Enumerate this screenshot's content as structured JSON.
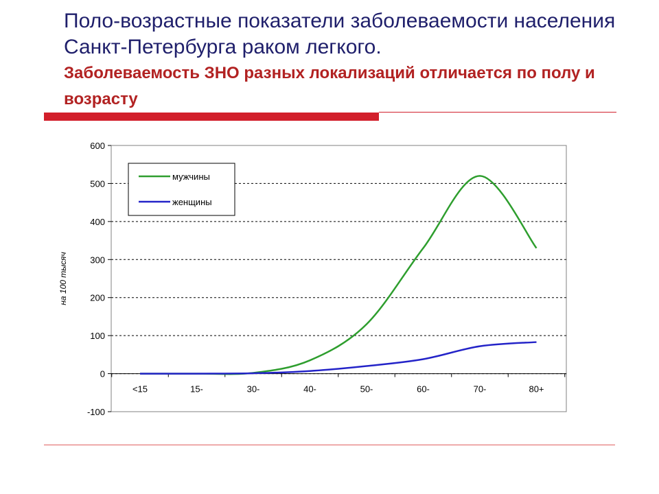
{
  "slide": {
    "title": "Поло-возрастные показатели заболеваемости населения Санкт-Петербурга раком легкого.",
    "subtitle": "Заболеваемость ЗНО разных локализаций отличается по полу и возрасту"
  },
  "chart_data": {
    "type": "line",
    "categories": [
      "<15",
      "15-",
      "30-",
      "40-",
      "50-",
      "60-",
      "70-",
      "80+"
    ],
    "ylabel": "на 100 тысяч",
    "ylim": [
      -100,
      600
    ],
    "yticks": [
      -100,
      0,
      100,
      200,
      300,
      400,
      500,
      600
    ],
    "grid": "dashed horizontal",
    "legend_position": "top-left",
    "series": [
      {
        "name": "мужчины",
        "color": "#2e9e2e",
        "values": [
          0,
          0,
          2,
          35,
          130,
          330,
          520,
          330
        ]
      },
      {
        "name": "женщины",
        "color": "#2323c8",
        "values": [
          0,
          0,
          1,
          7,
          20,
          38,
          72,
          83
        ]
      }
    ]
  }
}
